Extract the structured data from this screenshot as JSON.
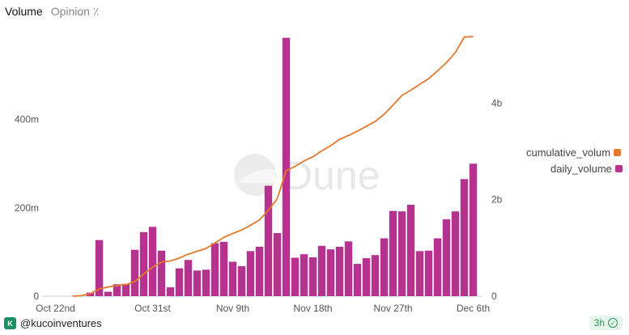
{
  "tabs": [
    {
      "label": "Volume"
    },
    {
      "label": "Opinion ٪"
    }
  ],
  "watermark": "Dune",
  "footer": {
    "handle": "@kucoinventures",
    "age": "3h"
  },
  "colors": {
    "bar": "#b5338e",
    "line": "#e2792d"
  },
  "chart_data": {
    "type": "bar+line",
    "x_ticks": [
      "Oct 22nd",
      "Oct 31st",
      "Nov 9th",
      "Nov 18th",
      "Nov 27th",
      "Dec 6th"
    ],
    "left_axis": {
      "ticks": [
        "0",
        "200m",
        "400m"
      ],
      "values": [
        0,
        200,
        400
      ],
      "ylim": [
        0,
        590
      ],
      "unit": "millions"
    },
    "right_axis": {
      "ticks": [
        "0",
        "2b",
        "4b"
      ],
      "values": [
        0,
        2,
        4
      ],
      "ylim": [
        0,
        5.4
      ],
      "unit": "billions"
    },
    "legend": [
      {
        "name": "cumulative_volum",
        "color": "#e2792d"
      },
      {
        "name": "daily_volume",
        "color": "#b5338e"
      }
    ],
    "series": [
      {
        "name": "daily_volume",
        "axis": "left",
        "type": "bar",
        "values": [
          0,
          0,
          8,
          127,
          10,
          27,
          28,
          105,
          145,
          157,
          103,
          20,
          63,
          82,
          58,
          60,
          120,
          123,
          78,
          68,
          102,
          112,
          250,
          143,
          585,
          87,
          95,
          88,
          114,
          106,
          112,
          124,
          73,
          86,
          93,
          131,
          193,
          192,
          207,
          102,
          103,
          131,
          174,
          192,
          265,
          300
        ]
      },
      {
        "name": "cumulative_volum",
        "axis": "right",
        "type": "line",
        "values": [
          0,
          0.01,
          0.05,
          0.15,
          0.19,
          0.22,
          0.24,
          0.3,
          0.46,
          0.6,
          0.71,
          0.73,
          0.79,
          0.87,
          0.93,
          0.99,
          1.1,
          1.22,
          1.3,
          1.37,
          1.47,
          1.58,
          1.78,
          2.02,
          2.6,
          2.69,
          2.8,
          2.89,
          3.01,
          3.12,
          3.25,
          3.33,
          3.42,
          3.52,
          3.62,
          3.77,
          3.96,
          4.16,
          4.27,
          4.39,
          4.51,
          4.67,
          4.84,
          5.05,
          5.37,
          5.38
        ]
      }
    ]
  }
}
